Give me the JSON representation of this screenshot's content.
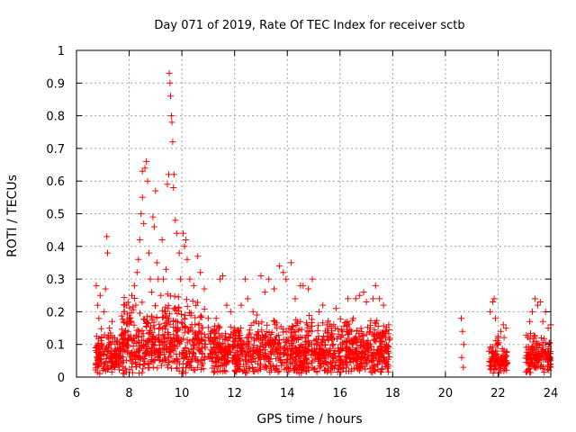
{
  "chart_data": {
    "type": "scatter",
    "title": "Day 071 of 2019, Rate Of TEC Index for receiver sctb",
    "xlabel": "GPS time / hours",
    "ylabel": "ROTI / TECUs",
    "xlim": [
      6,
      24
    ],
    "ylim": [
      0,
      1
    ],
    "grid": true,
    "xticks": [
      6,
      8,
      10,
      12,
      14,
      16,
      18,
      20,
      22,
      24
    ],
    "yticks": [
      0,
      0.1,
      0.2,
      0.3,
      0.4,
      0.5,
      0.6,
      0.7,
      0.8,
      0.9,
      1
    ],
    "xtick_labels": [
      "6",
      "8",
      "10",
      "12",
      "14",
      "16",
      "18",
      "20",
      "22",
      "24"
    ],
    "ytick_labels": [
      "0",
      "0.1",
      "0.2",
      "0.3",
      "0.4",
      "0.5",
      "0.6",
      "0.7",
      "0.8",
      "0.9",
      "1"
    ],
    "marker": "+",
    "series": [
      {
        "name": "ROTI",
        "color": "#ff0000",
        "points": [
          [
            6.75,
            0.28
          ],
          [
            6.8,
            0.22
          ],
          [
            6.85,
            0.18
          ],
          [
            6.9,
            0.25
          ],
          [
            6.95,
            0.12
          ],
          [
            7.05,
            0.2
          ],
          [
            7.1,
            0.27
          ],
          [
            7.15,
            0.43
          ],
          [
            7.18,
            0.38
          ],
          [
            7.25,
            0.15
          ],
          [
            7.35,
            0.17
          ],
          [
            7.45,
            0.12
          ],
          [
            7.55,
            0.1
          ],
          [
            7.65,
            0.09
          ],
          [
            7.8,
            0.2
          ],
          [
            7.9,
            0.22
          ],
          [
            7.95,
            0.14
          ],
          [
            8.05,
            0.18
          ],
          [
            8.1,
            0.25
          ],
          [
            8.2,
            0.28
          ],
          [
            8.25,
            0.22
          ],
          [
            8.3,
            0.32
          ],
          [
            8.35,
            0.36
          ],
          [
            8.4,
            0.42
          ],
          [
            8.45,
            0.5
          ],
          [
            8.5,
            0.55
          ],
          [
            8.5,
            0.63
          ],
          [
            8.55,
            0.47
          ],
          [
            8.6,
            0.64
          ],
          [
            8.65,
            0.66
          ],
          [
            8.7,
            0.6
          ],
          [
            8.75,
            0.38
          ],
          [
            8.8,
            0.3
          ],
          [
            8.85,
            0.26
          ],
          [
            8.9,
            0.49
          ],
          [
            8.95,
            0.46
          ],
          [
            9.0,
            0.57
          ],
          [
            9.05,
            0.35
          ],
          [
            9.1,
            0.3
          ],
          [
            9.2,
            0.25
          ],
          [
            9.25,
            0.42
          ],
          [
            9.3,
            0.3
          ],
          [
            9.4,
            0.33
          ],
          [
            9.45,
            0.59
          ],
          [
            9.5,
            0.62
          ],
          [
            9.52,
            0.93
          ],
          [
            9.55,
            0.9
          ],
          [
            9.57,
            0.86
          ],
          [
            9.6,
            0.8
          ],
          [
            9.62,
            0.78
          ],
          [
            9.65,
            0.72
          ],
          [
            9.68,
            0.58
          ],
          [
            9.7,
            0.62
          ],
          [
            9.75,
            0.48
          ],
          [
            9.8,
            0.44
          ],
          [
            9.9,
            0.38
          ],
          [
            9.95,
            0.3
          ],
          [
            10.05,
            0.44
          ],
          [
            10.1,
            0.4
          ],
          [
            10.15,
            0.42
          ],
          [
            10.2,
            0.36
          ],
          [
            10.3,
            0.3
          ],
          [
            10.45,
            0.28
          ],
          [
            10.6,
            0.37
          ],
          [
            10.7,
            0.32
          ],
          [
            10.85,
            0.27
          ],
          [
            11.0,
            0.18
          ],
          [
            11.1,
            0.14
          ],
          [
            11.3,
            0.18
          ],
          [
            11.45,
            0.3
          ],
          [
            11.55,
            0.31
          ],
          [
            11.7,
            0.22
          ],
          [
            11.85,
            0.2
          ],
          [
            12.0,
            0.15
          ],
          [
            12.25,
            0.22
          ],
          [
            12.4,
            0.3
          ],
          [
            12.5,
            0.24
          ],
          [
            12.7,
            0.2
          ],
          [
            12.85,
            0.19
          ],
          [
            13.0,
            0.31
          ],
          [
            13.15,
            0.26
          ],
          [
            13.3,
            0.3
          ],
          [
            13.5,
            0.27
          ],
          [
            13.7,
            0.34
          ],
          [
            13.85,
            0.32
          ],
          [
            13.95,
            0.3
          ],
          [
            14.15,
            0.35
          ],
          [
            14.3,
            0.24
          ],
          [
            14.5,
            0.28
          ],
          [
            14.6,
            0.28
          ],
          [
            14.8,
            0.27
          ],
          [
            14.95,
            0.3
          ],
          [
            15.2,
            0.2
          ],
          [
            15.35,
            0.22
          ],
          [
            15.5,
            0.16
          ],
          [
            15.7,
            0.13
          ],
          [
            15.85,
            0.21
          ],
          [
            16.1,
            0.14
          ],
          [
            16.3,
            0.24
          ],
          [
            16.5,
            0.18
          ],
          [
            16.6,
            0.24
          ],
          [
            16.75,
            0.25
          ],
          [
            16.9,
            0.26
          ],
          [
            17.0,
            0.23
          ],
          [
            17.25,
            0.24
          ],
          [
            17.35,
            0.28
          ],
          [
            17.5,
            0.24
          ],
          [
            17.65,
            0.22
          ],
          [
            17.85,
            0.16
          ],
          [
            20.6,
            0.18
          ],
          [
            20.65,
            0.14
          ],
          [
            20.7,
            0.1
          ],
          [
            20.62,
            0.06
          ],
          [
            20.68,
            0.03
          ],
          [
            21.7,
            0.2
          ],
          [
            21.8,
            0.23
          ],
          [
            21.85,
            0.24
          ],
          [
            21.9,
            0.18
          ],
          [
            22.0,
            0.12
          ],
          [
            22.1,
            0.14
          ],
          [
            22.2,
            0.16
          ],
          [
            22.3,
            0.15
          ],
          [
            23.2,
            0.17
          ],
          [
            23.3,
            0.2
          ],
          [
            23.4,
            0.24
          ],
          [
            23.5,
            0.22
          ],
          [
            23.6,
            0.23
          ],
          [
            23.7,
            0.17
          ],
          [
            23.8,
            0.2
          ],
          [
            23.9,
            0.15
          ],
          [
            24.0,
            0.16
          ]
        ],
        "clusters": [
          {
            "x_start": 6.7,
            "x_end": 7.7,
            "y_low": 0.01,
            "y_high": 0.15,
            "density": 1.0
          },
          {
            "x_start": 7.7,
            "x_end": 10.9,
            "y_low": 0.01,
            "y_high": 0.26,
            "density": 1.0
          },
          {
            "x_start": 11.0,
            "x_end": 17.9,
            "y_low": 0.01,
            "y_high": 0.19,
            "density": 1.0
          },
          {
            "x_start": 21.65,
            "x_end": 22.35,
            "y_low": 0.01,
            "y_high": 0.13,
            "density": 1.0
          },
          {
            "x_start": 23.05,
            "x_end": 24.0,
            "y_low": 0.01,
            "y_high": 0.14,
            "density": 1.0
          }
        ]
      }
    ]
  }
}
